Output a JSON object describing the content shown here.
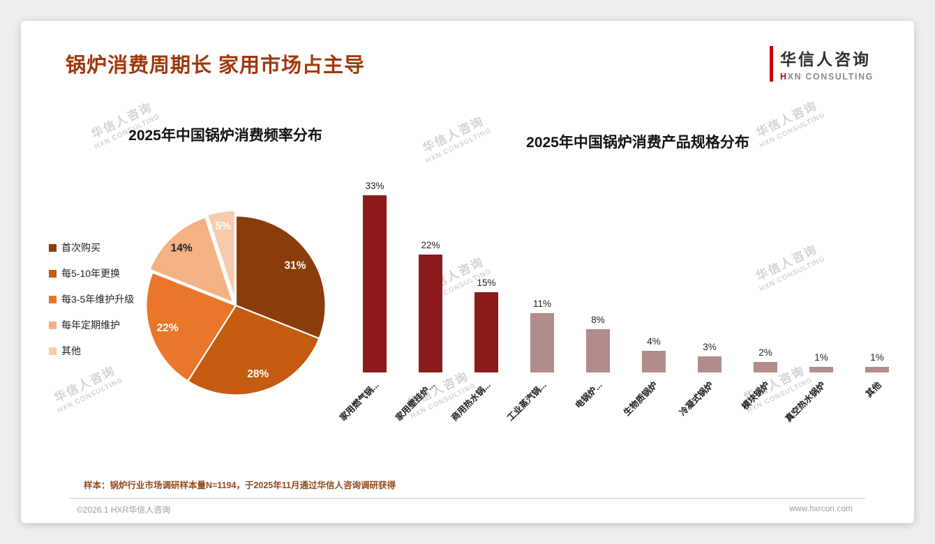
{
  "page": {
    "title": "锅炉消费周期长 家用市场占主导"
  },
  "theme": {
    "title_color": "#A0380C",
    "accent_red": "#CC0000",
    "footnote_color": "#92491C",
    "bar_primary": "#8B1B1B",
    "bar_secondary": "#B08C8A"
  },
  "logo": {
    "cn": "华信人咨询",
    "en_first": "H",
    "en_rest": "XN CONSULTING"
  },
  "watermark": {
    "line1": "华信人咨询",
    "line2": "HXN CONSULTING"
  },
  "footnote": "样本：锅炉行业市场调研样本量N=1194，于2025年11月通过华信人咨询调研获得",
  "footer": {
    "copyright": "©2026.1 HXR华信人咨询",
    "website": "www.hxrcon.com"
  },
  "chart_data": [
    {
      "type": "pie",
      "title": "2025年中国锅炉消费频率分布",
      "labels": [
        "首次购买",
        "每5-10年更换",
        "每3-5年维护升级",
        "每年定期维护",
        "其他"
      ],
      "values": [
        31,
        28,
        22,
        14,
        5
      ],
      "value_suffix": "%",
      "colors": [
        "#8A3D0B",
        "#C55A11",
        "#E9762A",
        "#F4B183",
        "#F8CBAD"
      ],
      "label_colors": [
        "#ffffff",
        "#ffffff",
        "#ffffff",
        "#1f1f1f",
        "#ffffff"
      ],
      "pull": [
        0,
        0,
        0,
        0.045,
        0.06
      ],
      "start_angle_deg": -90,
      "direction": "clockwise",
      "legend_position": "left"
    },
    {
      "type": "bar",
      "title": "2025年中国锅炉消费产品规格分布",
      "categories": [
        "家用燃气锅...",
        "家用壁挂炉...",
        "商用热水锅...",
        "工业蒸汽锅...",
        "电锅炉...",
        "生物质锅炉",
        "冷凝式锅炉",
        "模块锅炉",
        "真空热水锅炉",
        "其他"
      ],
      "values": [
        33,
        22,
        15,
        11,
        8,
        4,
        3,
        2,
        1,
        1
      ],
      "value_suffix": "%",
      "bar_colors": [
        "#8B1B1B",
        "#8B1B1B",
        "#8B1B1B",
        "#B08C8A",
        "#B08C8A",
        "#B08C8A",
        "#B08C8A",
        "#B08C8A",
        "#B08C8A",
        "#B08C8A"
      ],
      "ylim": [
        0,
        35
      ],
      "grid": false,
      "axis_visible": false,
      "label_rotation_deg": -45
    }
  ]
}
